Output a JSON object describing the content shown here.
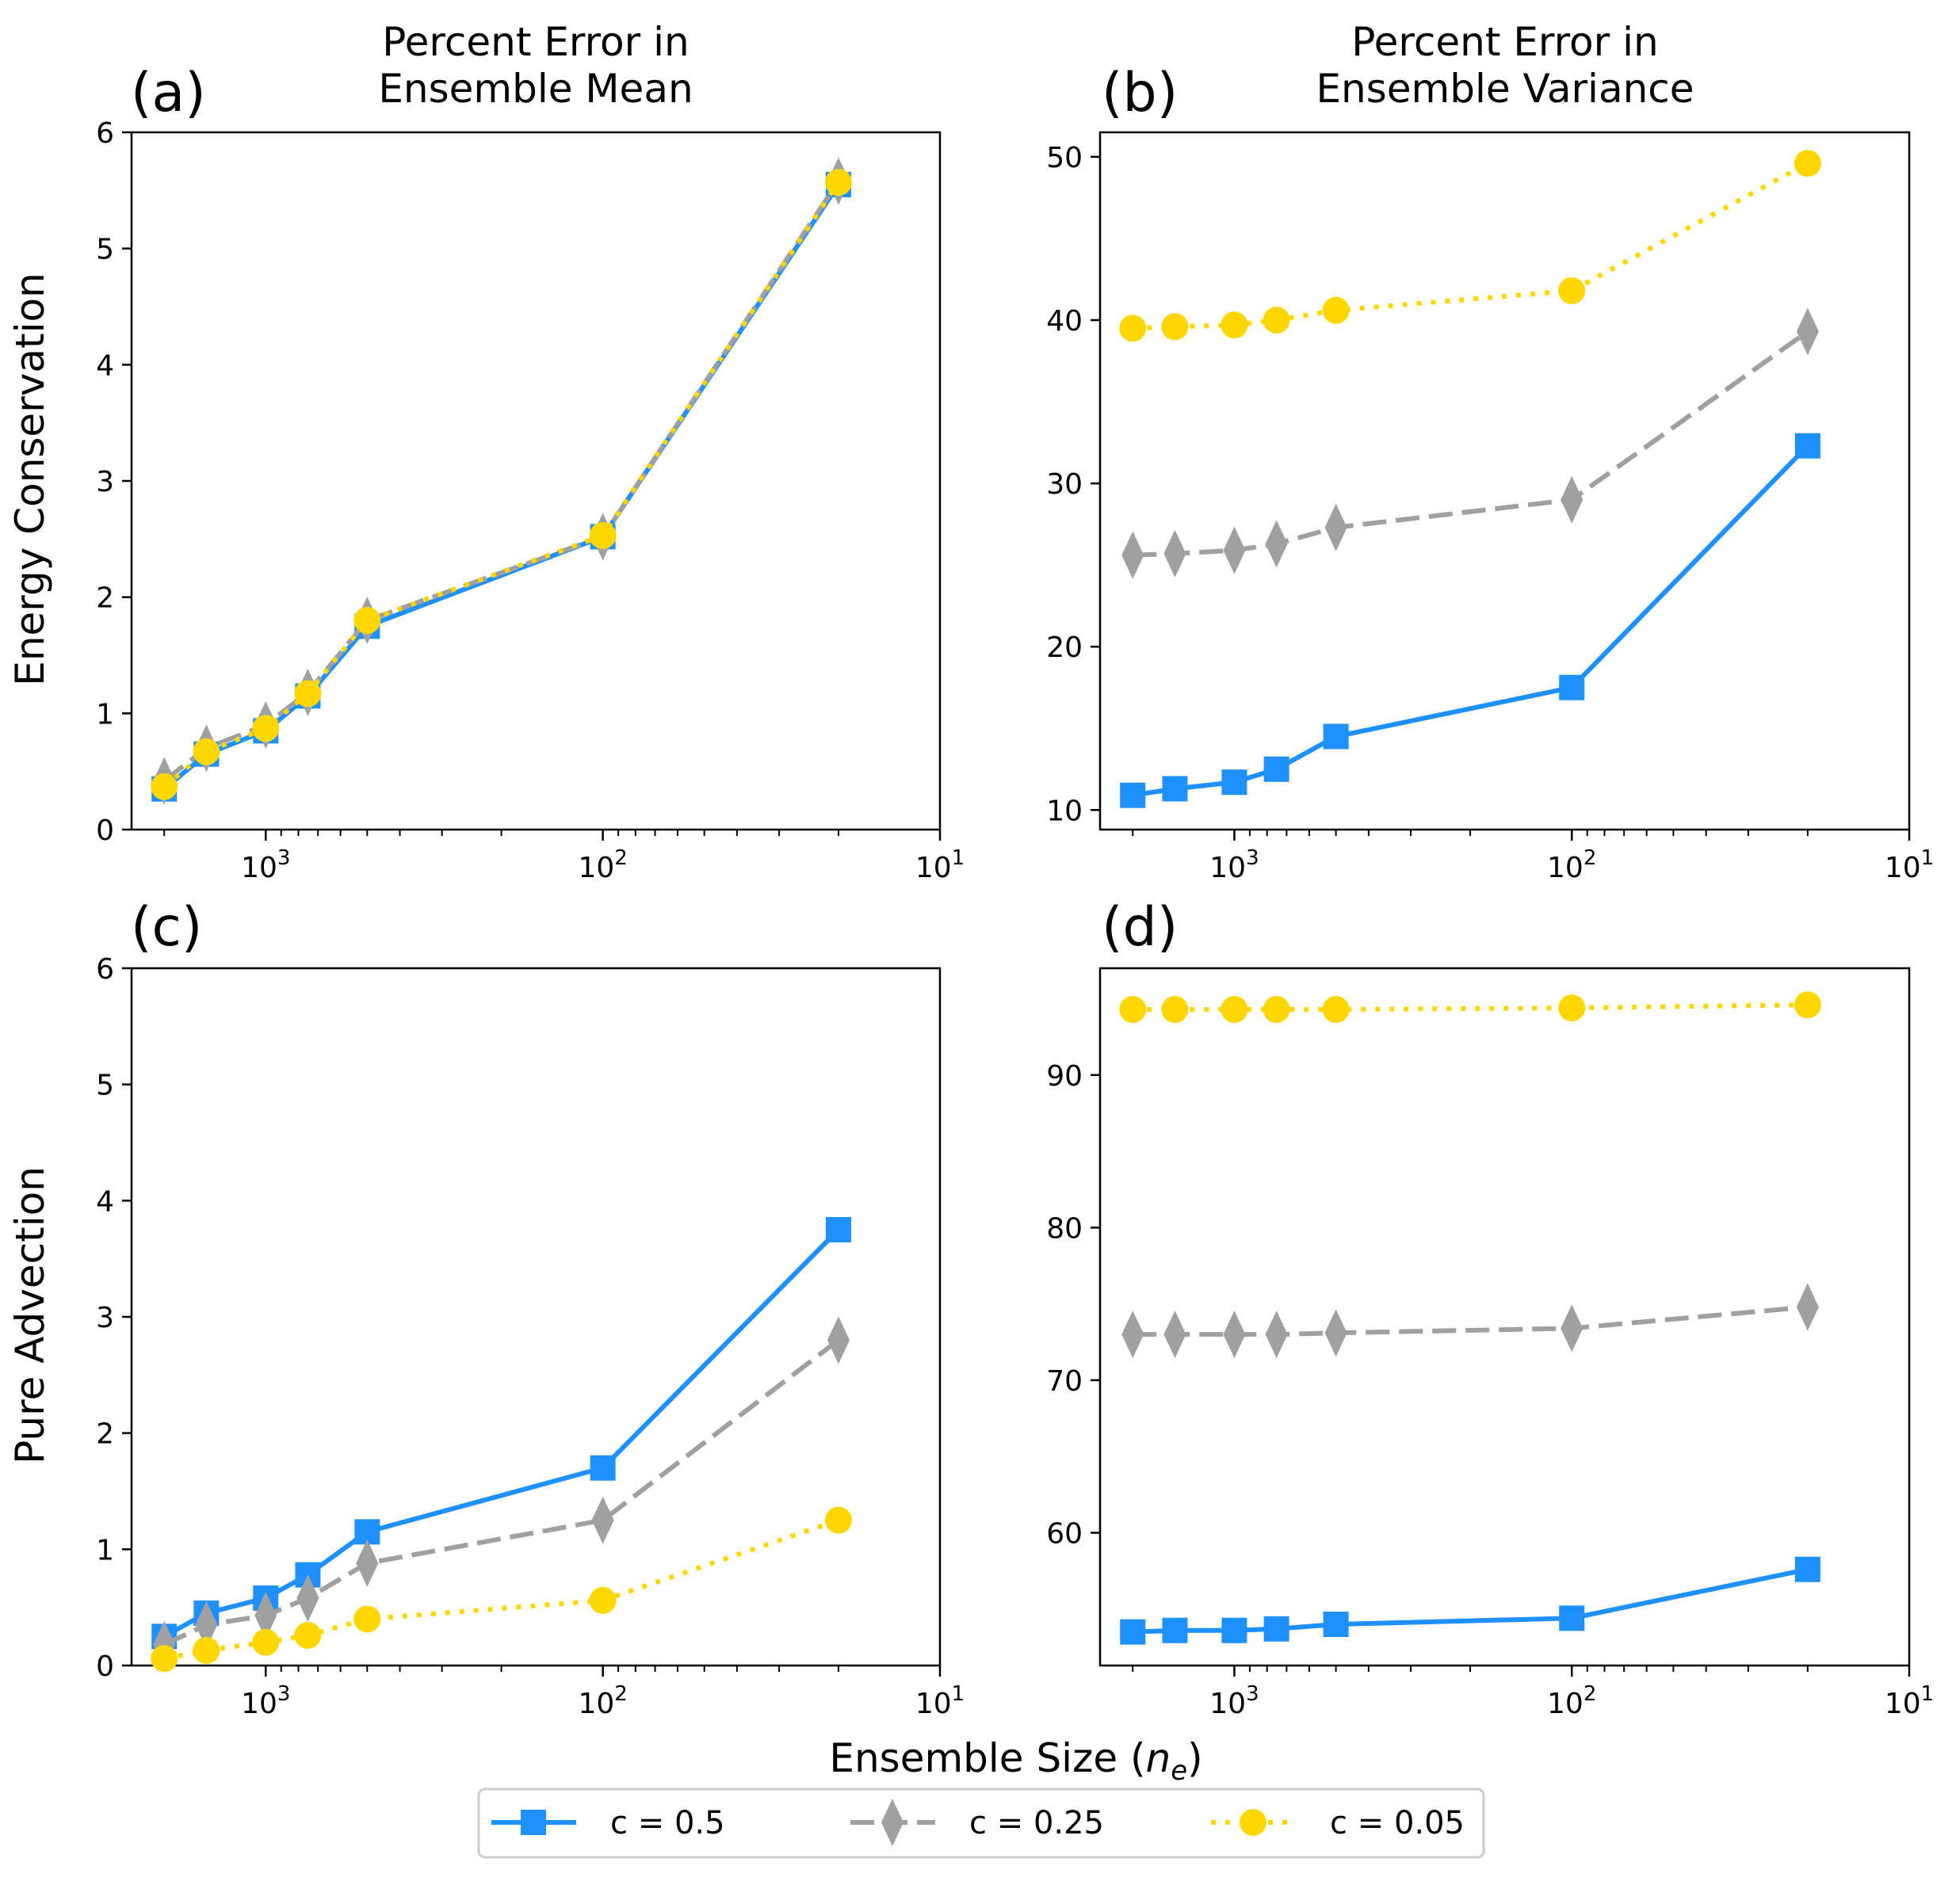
{
  "figure": {
    "col_titles": [
      "Percent Error in\nEnsemble Mean",
      "Percent Error in\nEnsemble Variance"
    ],
    "row_labels": [
      "Energy Conservation",
      "Pure Advection"
    ],
    "xlabel_main": "Ensemble Size (",
    "xlabel_var": "n",
    "xlabel_sub": "e",
    "xlabel_close": ")",
    "x_tick_labels": [
      {
        "base": "10",
        "exp": "3",
        "value": 1000
      },
      {
        "base": "10",
        "exp": "2",
        "value": 100
      },
      {
        "base": "10",
        "exp": "1",
        "value": 10
      }
    ],
    "legend": [
      {
        "label": "c = 0.5",
        "color": "#1E90FF",
        "marker": "square",
        "dash": "solid"
      },
      {
        "label": "c = 0.25",
        "color": "#A0A0A0",
        "marker": "thin_diamond",
        "dash": "dashed"
      },
      {
        "label": "c = 0.05",
        "color": "#FFD700",
        "marker": "circle",
        "dash": "dotted"
      }
    ]
  },
  "chart_data": [
    {
      "panel": "(a)",
      "type": "line",
      "title": "Percent Error in\nEnsemble Mean",
      "ylabel": "Energy Conservation",
      "xscale": "log",
      "xaxis_reversed": true,
      "xlim": [
        2500,
        10
      ],
      "ylim": [
        0,
        6
      ],
      "yticks": [
        0,
        1,
        2,
        3,
        4,
        5,
        6
      ],
      "x": [
        2000,
        1500,
        1000,
        750,
        500,
        100,
        20
      ],
      "series": [
        {
          "name": "c = 0.5",
          "values": [
            0.35,
            0.65,
            0.85,
            1.15,
            1.75,
            2.52,
            5.55
          ]
        },
        {
          "name": "c = 0.25",
          "values": [
            0.42,
            0.7,
            0.9,
            1.18,
            1.8,
            2.52,
            5.58
          ]
        },
        {
          "name": "c = 0.05",
          "values": [
            0.37,
            0.67,
            0.87,
            1.17,
            1.8,
            2.53,
            5.57
          ]
        }
      ]
    },
    {
      "panel": "(b)",
      "type": "line",
      "title": "Percent Error in\nEnsemble Variance",
      "ylabel": "",
      "xscale": "log",
      "xaxis_reversed": true,
      "xlim": [
        2500,
        10
      ],
      "ylim": [
        8.8,
        51.5
      ],
      "yticks": [
        10,
        20,
        30,
        40,
        50
      ],
      "x": [
        2000,
        1500,
        1000,
        750,
        500,
        100,
        20
      ],
      "series": [
        {
          "name": "c = 0.5",
          "values": [
            10.9,
            11.3,
            11.7,
            12.5,
            14.5,
            17.5,
            32.3
          ]
        },
        {
          "name": "c = 0.25",
          "values": [
            25.6,
            25.7,
            25.9,
            26.3,
            27.3,
            29.0,
            39.3
          ]
        },
        {
          "name": "c = 0.05",
          "values": [
            39.5,
            39.6,
            39.7,
            40.0,
            40.6,
            41.8,
            49.6
          ]
        }
      ]
    },
    {
      "panel": "(c)",
      "type": "line",
      "title": "",
      "ylabel": "Pure Advection",
      "xscale": "log",
      "xaxis_reversed": true,
      "xlim": [
        2500,
        10
      ],
      "ylim": [
        0,
        6
      ],
      "yticks": [
        0,
        1,
        2,
        3,
        4,
        5,
        6
      ],
      "x": [
        2000,
        1500,
        1000,
        750,
        500,
        100,
        20
      ],
      "series": [
        {
          "name": "c = 0.5",
          "values": [
            0.25,
            0.45,
            0.58,
            0.78,
            1.15,
            1.7,
            3.75
          ]
        },
        {
          "name": "c = 0.25",
          "values": [
            0.18,
            0.35,
            0.43,
            0.58,
            0.88,
            1.25,
            2.8
          ]
        },
        {
          "name": "c = 0.05",
          "values": [
            0.06,
            0.13,
            0.2,
            0.26,
            0.4,
            0.56,
            1.25
          ]
        }
      ]
    },
    {
      "panel": "(d)",
      "type": "line",
      "title": "",
      "ylabel": "",
      "xscale": "log",
      "xaxis_reversed": true,
      "xlim": [
        2500,
        10
      ],
      "ylim": [
        51.3,
        97.0
      ],
      "yticks": [
        60,
        70,
        80,
        90
      ],
      "x": [
        2000,
        1500,
        1000,
        750,
        500,
        100,
        20
      ],
      "series": [
        {
          "name": "c = 0.5",
          "values": [
            53.5,
            53.6,
            53.6,
            53.7,
            54.0,
            54.4,
            57.6
          ]
        },
        {
          "name": "c = 0.25",
          "values": [
            73.0,
            73.0,
            73.0,
            73.0,
            73.1,
            73.4,
            74.8
          ]
        },
        {
          "name": "c = 0.05",
          "values": [
            94.3,
            94.3,
            94.3,
            94.3,
            94.3,
            94.4,
            94.6
          ]
        }
      ]
    }
  ]
}
